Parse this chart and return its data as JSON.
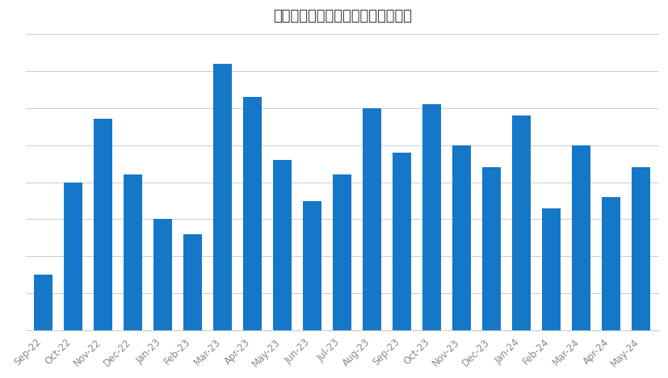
{
  "title": "世界におけるスミッシング報告件数",
  "categories": [
    "Sep-22",
    "Oct-22",
    "Nov-22",
    "Dec-22",
    "Jan-23",
    "Feb-23",
    "Mar-23",
    "Apr-23",
    "May-23",
    "Jun-23",
    "Jul-23",
    "Aug-23",
    "Sep-23",
    "Oct-23",
    "Nov-23",
    "Dec-23",
    "Jan-24",
    "Feb-24",
    "Mar-24",
    "Apr-24",
    "May-24"
  ],
  "values": [
    15,
    40,
    57,
    42,
    30,
    26,
    72,
    63,
    46,
    35,
    42,
    60,
    48,
    61,
    50,
    44,
    58,
    33,
    50,
    36,
    44
  ],
  "bar_color": "#1577c8",
  "background_color": "#ffffff",
  "grid_color": "#cccccc",
  "title_fontsize": 13,
  "tick_fontsize": 8.5,
  "tick_color": "#888888",
  "ylim": [
    0,
    80
  ],
  "fig_width": 8.27,
  "fig_height": 4.68,
  "dpi": 100,
  "bar_width": 0.62
}
